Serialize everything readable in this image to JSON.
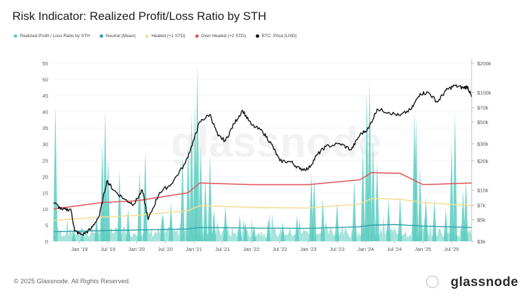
{
  "title": "Risk Indicator: Realized Profit/Loss Ratio by STH",
  "footer": "© 2025 Glassnode. All Rights Reserved.",
  "watermark": "glassnode",
  "legend": [
    {
      "label": "Realized Profit / Loss Ratio by STH",
      "color": "#5ccdbf"
    },
    {
      "label": "Neutral (Mean)",
      "color": "#2aa3a8"
    },
    {
      "label": "Heated (+1 STD)",
      "color": "#f3df97"
    },
    {
      "label": "Over Heated (+2 STD)",
      "color": "#e0585f"
    },
    {
      "label": "BTC: Price [USD]",
      "color": "#111111"
    }
  ],
  "chart_data": {
    "type": "area",
    "title": "Risk Indicator: Realized Profit/Loss Ratio by STH",
    "x_tick_labels": [
      "Jan '19",
      "Jul '19",
      "Jan '20",
      "Jul '20",
      "Jan '21",
      "Jul '21",
      "Jan '22",
      "Jul '22",
      "Jan '23",
      "Jul '23",
      "Jan '24",
      "Jul '24",
      "Jan '25",
      "Jul '25"
    ],
    "x_range": [
      2018.55,
      2025.85
    ],
    "y_left": {
      "ticks": [
        0,
        5,
        10,
        15,
        20,
        25,
        30,
        35,
        40,
        45,
        50,
        55
      ],
      "range": [
        0,
        55
      ]
    },
    "y_right": {
      "ticks": [
        3000,
        5000,
        7000,
        10000,
        20000,
        30000,
        50000,
        70000,
        100000,
        200000
      ],
      "tick_labels": [
        "$3k",
        "$5k",
        "$7k",
        "$10k",
        "$20k",
        "$30k",
        "$50k",
        "$70k",
        "$100k",
        "$200k"
      ],
      "range": [
        3000,
        200000
      ],
      "scale": "log"
    },
    "ratio_spikes": [
      {
        "x": 2018.58,
        "y": 42.0
      },
      {
        "x": 2018.9,
        "y": 3.0
      },
      {
        "x": 2019.05,
        "y": 2.0
      },
      {
        "x": 2019.3,
        "y": 8.0
      },
      {
        "x": 2019.4,
        "y": 30.0
      },
      {
        "x": 2019.45,
        "y": 40.5
      },
      {
        "x": 2019.5,
        "y": 26.0
      },
      {
        "x": 2019.7,
        "y": 22.0
      },
      {
        "x": 2019.85,
        "y": 10.0
      },
      {
        "x": 2020.05,
        "y": 22.0
      },
      {
        "x": 2020.15,
        "y": 28.0
      },
      {
        "x": 2020.45,
        "y": 9.0
      },
      {
        "x": 2020.6,
        "y": 12.0
      },
      {
        "x": 2020.8,
        "y": 27.0
      },
      {
        "x": 2020.9,
        "y": 30.0
      },
      {
        "x": 2020.96,
        "y": 40.0
      },
      {
        "x": 2021.02,
        "y": 43.0
      },
      {
        "x": 2021.06,
        "y": 54.5
      },
      {
        "x": 2021.12,
        "y": 30.0
      },
      {
        "x": 2021.2,
        "y": 20.0
      },
      {
        "x": 2021.28,
        "y": 27.0
      },
      {
        "x": 2021.35,
        "y": 10.0
      },
      {
        "x": 2021.55,
        "y": 11.0
      },
      {
        "x": 2021.8,
        "y": 8.0
      },
      {
        "x": 2021.9,
        "y": 6.0
      },
      {
        "x": 2022.05,
        "y": 5.0
      },
      {
        "x": 2022.3,
        "y": 7.0
      },
      {
        "x": 2022.55,
        "y": 6.0
      },
      {
        "x": 2022.8,
        "y": 8.0
      },
      {
        "x": 2023.05,
        "y": 21.0
      },
      {
        "x": 2023.1,
        "y": 20.0
      },
      {
        "x": 2023.25,
        "y": 13.0
      },
      {
        "x": 2023.5,
        "y": 12.0
      },
      {
        "x": 2023.8,
        "y": 19.0
      },
      {
        "x": 2023.95,
        "y": 29.0
      },
      {
        "x": 2024.02,
        "y": 46.0
      },
      {
        "x": 2024.07,
        "y": 50.0
      },
      {
        "x": 2024.13,
        "y": 32.0
      },
      {
        "x": 2024.2,
        "y": 25.0
      },
      {
        "x": 2024.4,
        "y": 13.0
      },
      {
        "x": 2024.6,
        "y": 14.0
      },
      {
        "x": 2024.85,
        "y": 40.0
      },
      {
        "x": 2024.88,
        "y": 38.0
      },
      {
        "x": 2024.95,
        "y": 23.0
      },
      {
        "x": 2025.05,
        "y": 14.0
      },
      {
        "x": 2025.2,
        "y": 13.0
      },
      {
        "x": 2025.4,
        "y": 10.0
      },
      {
        "x": 2025.5,
        "y": 30.0
      },
      {
        "x": 2025.56,
        "y": 40.0
      },
      {
        "x": 2025.7,
        "y": 16.0
      },
      {
        "x": 2025.75,
        "y": 19.0
      }
    ],
    "neutral_mean": [
      {
        "x": 2018.55,
        "y": 3.0
      },
      {
        "x": 2019.4,
        "y": 3.3
      },
      {
        "x": 2020.0,
        "y": 3.5
      },
      {
        "x": 2020.9,
        "y": 3.8
      },
      {
        "x": 2021.1,
        "y": 4.3
      },
      {
        "x": 2022.0,
        "y": 4.1
      },
      {
        "x": 2023.0,
        "y": 4.0
      },
      {
        "x": 2023.9,
        "y": 4.5
      },
      {
        "x": 2024.1,
        "y": 5.0
      },
      {
        "x": 2024.5,
        "y": 5.2
      },
      {
        "x": 2025.0,
        "y": 4.7
      },
      {
        "x": 2025.85,
        "y": 4.3
      }
    ],
    "heated_1std": [
      {
        "x": 2018.55,
        "y": 6.5
      },
      {
        "x": 2019.4,
        "y": 7.5
      },
      {
        "x": 2020.0,
        "y": 8.0
      },
      {
        "x": 2020.9,
        "y": 9.5
      },
      {
        "x": 2021.1,
        "y": 11.0
      },
      {
        "x": 2022.0,
        "y": 10.5
      },
      {
        "x": 2023.0,
        "y": 10.3
      },
      {
        "x": 2023.9,
        "y": 11.5
      },
      {
        "x": 2024.1,
        "y": 13.2
      },
      {
        "x": 2024.6,
        "y": 13.0
      },
      {
        "x": 2025.0,
        "y": 12.0
      },
      {
        "x": 2025.85,
        "y": 11.0
      }
    ],
    "overheated_2std": [
      {
        "x": 2018.55,
        "y": 10.0
      },
      {
        "x": 2019.4,
        "y": 12.0
      },
      {
        "x": 2020.0,
        "y": 12.5
      },
      {
        "x": 2020.9,
        "y": 15.0
      },
      {
        "x": 2021.1,
        "y": 18.0
      },
      {
        "x": 2022.0,
        "y": 17.5
      },
      {
        "x": 2023.0,
        "y": 17.5
      },
      {
        "x": 2023.9,
        "y": 19.0
      },
      {
        "x": 2024.1,
        "y": 21.2
      },
      {
        "x": 2024.6,
        "y": 21.0
      },
      {
        "x": 2025.0,
        "y": 17.5
      },
      {
        "x": 2025.85,
        "y": 18.0
      }
    ],
    "btc_price": [
      {
        "x": 2018.55,
        "y": 7500
      },
      {
        "x": 2018.7,
        "y": 6300
      },
      {
        "x": 2018.85,
        "y": 6400
      },
      {
        "x": 2018.92,
        "y": 3800
      },
      {
        "x": 2019.05,
        "y": 3500
      },
      {
        "x": 2019.2,
        "y": 4000
      },
      {
        "x": 2019.35,
        "y": 5500
      },
      {
        "x": 2019.48,
        "y": 12500
      },
      {
        "x": 2019.6,
        "y": 10000
      },
      {
        "x": 2019.8,
        "y": 8000
      },
      {
        "x": 2019.95,
        "y": 7200
      },
      {
        "x": 2020.1,
        "y": 10000
      },
      {
        "x": 2020.2,
        "y": 5000
      },
      {
        "x": 2020.4,
        "y": 9500
      },
      {
        "x": 2020.6,
        "y": 11500
      },
      {
        "x": 2020.85,
        "y": 19000
      },
      {
        "x": 2021.0,
        "y": 33000
      },
      {
        "x": 2021.1,
        "y": 50000
      },
      {
        "x": 2021.28,
        "y": 60000
      },
      {
        "x": 2021.42,
        "y": 36000
      },
      {
        "x": 2021.55,
        "y": 32000
      },
      {
        "x": 2021.7,
        "y": 48000
      },
      {
        "x": 2021.85,
        "y": 66000
      },
      {
        "x": 2022.0,
        "y": 47000
      },
      {
        "x": 2022.2,
        "y": 40000
      },
      {
        "x": 2022.35,
        "y": 30000
      },
      {
        "x": 2022.5,
        "y": 20000
      },
      {
        "x": 2022.7,
        "y": 19500
      },
      {
        "x": 2022.85,
        "y": 16500
      },
      {
        "x": 2023.0,
        "y": 16600
      },
      {
        "x": 2023.15,
        "y": 23000
      },
      {
        "x": 2023.3,
        "y": 28000
      },
      {
        "x": 2023.55,
        "y": 30000
      },
      {
        "x": 2023.75,
        "y": 26000
      },
      {
        "x": 2023.9,
        "y": 37000
      },
      {
        "x": 2024.05,
        "y": 43000
      },
      {
        "x": 2024.2,
        "y": 68000
      },
      {
        "x": 2024.4,
        "y": 63000
      },
      {
        "x": 2024.6,
        "y": 58000
      },
      {
        "x": 2024.8,
        "y": 68000
      },
      {
        "x": 2024.95,
        "y": 98000
      },
      {
        "x": 2025.1,
        "y": 100000
      },
      {
        "x": 2025.25,
        "y": 80000
      },
      {
        "x": 2025.4,
        "y": 105000
      },
      {
        "x": 2025.55,
        "y": 118000
      },
      {
        "x": 2025.7,
        "y": 112000
      },
      {
        "x": 2025.78,
        "y": 115000
      },
      {
        "x": 2025.85,
        "y": 90000
      }
    ]
  }
}
